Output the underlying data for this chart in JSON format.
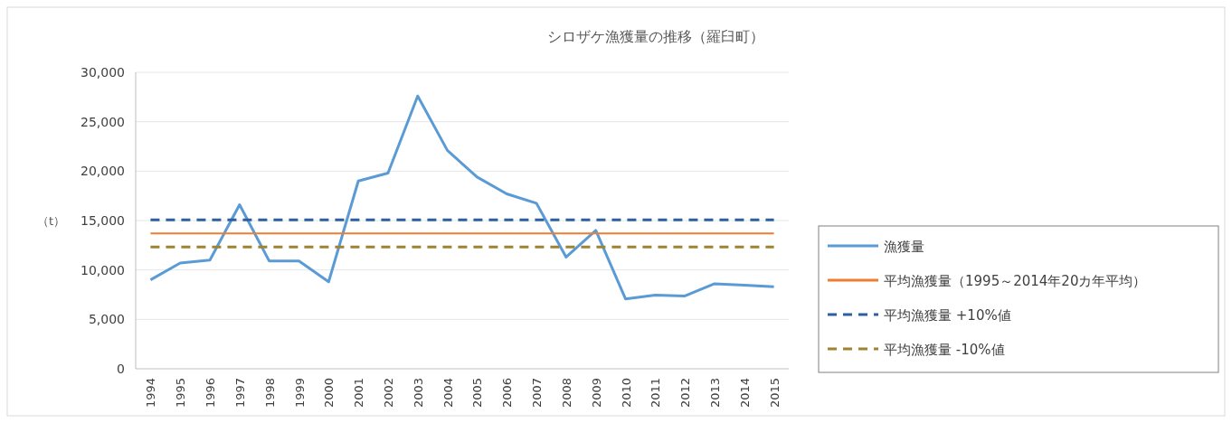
{
  "chart_data": {
    "type": "line",
    "title": "シロザケ漁獲量の推移（羅臼町）",
    "ylabel": "（t）",
    "categories": [
      "1994",
      "1995",
      "1996",
      "1997",
      "1998",
      "1999",
      "2000",
      "2001",
      "2002",
      "2003",
      "2004",
      "2005",
      "2006",
      "2007",
      "2008",
      "2009",
      "2010",
      "2011",
      "2012",
      "2013",
      "2014",
      "2015"
    ],
    "series": [
      {
        "name": "漁獲量",
        "color": "#5b9bd5",
        "line_style": "solid",
        "values": [
          9000,
          10700,
          11000,
          16600,
          10900,
          10900,
          8800,
          19000,
          19800,
          27600,
          22100,
          19400,
          17700,
          16750,
          11300,
          14000,
          7070,
          7460,
          7370,
          8600,
          8470,
          8300
        ]
      },
      {
        "name": "平均漁獲量（1995～2014年20カ年平均）",
        "color": "#ed7d31",
        "line_style": "solid",
        "values": [
          13700,
          13700,
          13700,
          13700,
          13700,
          13700,
          13700,
          13700,
          13700,
          13700,
          13700,
          13700,
          13700,
          13700,
          13700,
          13700,
          13700,
          13700,
          13700,
          13700,
          13700,
          13700
        ]
      },
      {
        "name": "平均漁獲量 +10%値",
        "color": "#2f5f9e",
        "line_style": "dashed",
        "values": [
          15070,
          15070,
          15070,
          15070,
          15070,
          15070,
          15070,
          15070,
          15070,
          15070,
          15070,
          15070,
          15070,
          15070,
          15070,
          15070,
          15070,
          15070,
          15070,
          15070,
          15070,
          15070
        ]
      },
      {
        "name": "平均漁獲量 -10%値",
        "color": "#9c8433",
        "line_style": "dashed",
        "values": [
          12330,
          12330,
          12330,
          12330,
          12330,
          12330,
          12330,
          12330,
          12330,
          12330,
          12330,
          12330,
          12330,
          12330,
          12330,
          12330,
          12330,
          12330,
          12330,
          12330,
          12330,
          12330
        ]
      }
    ],
    "ylim": [
      0,
      30000
    ],
    "yticks": [
      0,
      {
        "value": 5000,
        "label": "5,000"
      },
      {
        "value": 10000,
        "label": "10,000"
      },
      {
        "value": 15000,
        "label": "15,000"
      },
      {
        "value": 20000,
        "label": "20,000"
      },
      {
        "value": 25000,
        "label": "25,000"
      },
      {
        "value": 30000,
        "label": "30,000"
      }
    ],
    "grid": "y",
    "legend": "right"
  }
}
